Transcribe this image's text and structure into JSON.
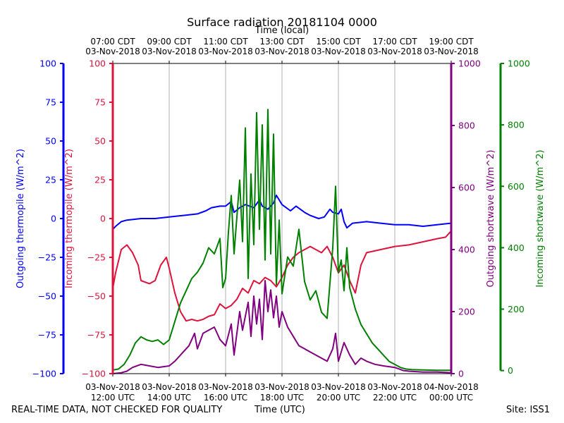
{
  "chart_data": {
    "type": "line",
    "title": "Surface radiation 20181104 0000",
    "top_axis_label": "Time (local)",
    "bottom_axis_label": "Time (UTC)",
    "x_range_hours_utc": [
      12,
      24
    ],
    "utc_ticks": [
      {
        "hour": 12,
        "date": "03-Nov-2018",
        "time": "12:00 UTC"
      },
      {
        "hour": 14,
        "date": "03-Nov-2018",
        "time": "14:00 UTC"
      },
      {
        "hour": 16,
        "date": "03-Nov-2018",
        "time": "16:00 UTC"
      },
      {
        "hour": 18,
        "date": "03-Nov-2018",
        "time": "18:00 UTC"
      },
      {
        "hour": 20,
        "date": "03-Nov-2018",
        "time": "20:00 UTC"
      },
      {
        "hour": 22,
        "date": "03-Nov-2018",
        "time": "22:00 UTC"
      },
      {
        "hour": 24,
        "date": "04-Nov-2018",
        "time": "00:00 UTC"
      }
    ],
    "local_ticks": [
      {
        "hour": 12,
        "time": "07:00 CDT",
        "date": "03-Nov-2018"
      },
      {
        "hour": 14,
        "time": "09:00 CDT",
        "date": "03-Nov-2018"
      },
      {
        "hour": 16,
        "time": "11:00 CDT",
        "date": "03-Nov-2018"
      },
      {
        "hour": 18,
        "time": "13:00 CDT",
        "date": "03-Nov-2018"
      },
      {
        "hour": 20,
        "time": "15:00 CDT",
        "date": "03-Nov-2018"
      },
      {
        "hour": 22,
        "time": "17:00 CDT",
        "date": "03-Nov-2018"
      },
      {
        "hour": 24,
        "time": "19:00 CDT",
        "date": "03-Nov-2018"
      }
    ],
    "y_axes": [
      {
        "id": "outgoing_thermopile",
        "label": "Outgoing thermopile (W/m^2)",
        "color": "#0000ff",
        "ylim": [
          -100,
          100
        ],
        "ticks": [
          -100,
          -75,
          -50,
          -25,
          0,
          25,
          50,
          75,
          100
        ]
      },
      {
        "id": "incoming_thermopile",
        "label": "Incoming thermopile (W/m^2)",
        "color": "#dc143c",
        "ylim": [
          -100,
          100
        ],
        "ticks": [
          -100,
          -75,
          -50,
          -25,
          0,
          25,
          50,
          75,
          100
        ]
      },
      {
        "id": "outgoing_shortwave",
        "label": "Outgoing shortwave (W/m^2)",
        "color": "#800080",
        "ylim": [
          0,
          1000
        ],
        "ticks": [
          0,
          200,
          400,
          600,
          800,
          1000
        ]
      },
      {
        "id": "incoming_shortwave",
        "label": "Incoming shortwave (W/m^2)",
        "color": "#008000",
        "ylim": [
          -10,
          1000
        ],
        "ticks": [
          0,
          200,
          400,
          600,
          800,
          1000
        ]
      }
    ],
    "series": [
      {
        "name": "Outgoing thermopile",
        "axis": "outgoing_thermopile",
        "color": "#0000ff",
        "x": [
          12.0,
          12.1,
          12.3,
          12.5,
          13.0,
          13.5,
          14.0,
          14.5,
          15.0,
          15.3,
          15.5,
          15.8,
          16.0,
          16.2,
          16.3,
          16.5,
          16.7,
          17.0,
          17.2,
          17.3,
          17.5,
          17.7,
          17.8,
          18.0,
          18.3,
          18.5,
          18.8,
          19.0,
          19.3,
          19.5,
          19.7,
          19.8,
          20.0,
          20.1,
          20.2,
          20.3,
          20.5,
          21.0,
          21.5,
          22.0,
          22.5,
          23.0,
          23.5,
          24.0
        ],
        "y": [
          -7,
          -5,
          -2,
          -1,
          0,
          0,
          1,
          2,
          3,
          5,
          7,
          8,
          8,
          11,
          4,
          7,
          9,
          7,
          12,
          8,
          6,
          10,
          15,
          9,
          5,
          8,
          4,
          2,
          0,
          1,
          6,
          4,
          3,
          6,
          -2,
          -6,
          -3,
          -2,
          -3,
          -4,
          -4,
          -5,
          -4,
          -3
        ]
      },
      {
        "name": "Incoming thermopile",
        "axis": "incoming_thermopile",
        "color": "#dc143c",
        "x": [
          12.0,
          12.1,
          12.3,
          12.5,
          12.7,
          12.9,
          13.0,
          13.3,
          13.5,
          13.7,
          13.9,
          14.0,
          14.2,
          14.4,
          14.6,
          14.8,
          15.0,
          15.2,
          15.4,
          15.6,
          15.8,
          16.0,
          16.2,
          16.4,
          16.6,
          16.8,
          17.0,
          17.2,
          17.4,
          17.6,
          17.8,
          18.0,
          18.2,
          18.4,
          18.6,
          18.8,
          19.0,
          19.2,
          19.4,
          19.6,
          19.8,
          20.0,
          20.2,
          20.4,
          20.6,
          20.8,
          21.0,
          21.5,
          22.0,
          22.5,
          23.0,
          23.5,
          23.8,
          24.0
        ],
        "y": [
          -45,
          -35,
          -20,
          -17,
          -22,
          -30,
          -40,
          -42,
          -40,
          -30,
          -25,
          -32,
          -48,
          -60,
          -66,
          -65,
          -66,
          -65,
          -63,
          -62,
          -55,
          -58,
          -56,
          -52,
          -45,
          -48,
          -40,
          -42,
          -38,
          -40,
          -44,
          -38,
          -30,
          -25,
          -22,
          -20,
          -18,
          -20,
          -22,
          -18,
          -25,
          -35,
          -30,
          -40,
          -48,
          -30,
          -22,
          -20,
          -18,
          -17,
          -15,
          -13,
          -12,
          -8
        ]
      },
      {
        "name": "Outgoing shortwave",
        "axis": "outgoing_shortwave",
        "color": "#800080",
        "x": [
          12.0,
          12.3,
          12.5,
          12.7,
          13.0,
          13.3,
          13.6,
          14.0,
          14.2,
          14.5,
          14.7,
          14.9,
          15.0,
          15.2,
          15.4,
          15.6,
          15.8,
          16.0,
          16.2,
          16.3,
          16.5,
          16.6,
          16.8,
          16.9,
          17.0,
          17.1,
          17.2,
          17.3,
          17.4,
          17.5,
          17.6,
          17.7,
          17.8,
          17.9,
          18.0,
          18.2,
          18.4,
          18.6,
          18.8,
          19.0,
          19.2,
          19.4,
          19.6,
          19.8,
          19.9,
          20.0,
          20.2,
          20.4,
          20.6,
          20.8,
          21.0,
          21.3,
          21.6,
          22.0,
          22.3,
          22.5,
          23.0,
          23.5,
          24.0
        ],
        "y": [
          0,
          3,
          8,
          20,
          30,
          25,
          20,
          25,
          40,
          70,
          90,
          130,
          80,
          130,
          140,
          150,
          110,
          90,
          160,
          60,
          200,
          140,
          230,
          120,
          250,
          160,
          240,
          110,
          300,
          200,
          270,
          180,
          250,
          150,
          200,
          150,
          120,
          90,
          80,
          70,
          60,
          50,
          40,
          80,
          130,
          40,
          100,
          60,
          30,
          50,
          40,
          30,
          25,
          20,
          10,
          8,
          5,
          5,
          3
        ]
      },
      {
        "name": "Incoming shortwave",
        "axis": "incoming_shortwave",
        "color": "#008000",
        "x": [
          12.0,
          12.2,
          12.4,
          12.6,
          12.8,
          13.0,
          13.2,
          13.4,
          13.6,
          13.8,
          14.0,
          14.2,
          14.4,
          14.6,
          14.8,
          15.0,
          15.2,
          15.4,
          15.6,
          15.8,
          15.9,
          16.0,
          16.1,
          16.2,
          16.3,
          16.4,
          16.5,
          16.6,
          16.7,
          16.8,
          16.9,
          17.0,
          17.1,
          17.2,
          17.3,
          17.4,
          17.5,
          17.6,
          17.7,
          17.8,
          17.9,
          18.0,
          18.2,
          18.4,
          18.6,
          18.8,
          19.0,
          19.2,
          19.4,
          19.6,
          19.8,
          19.9,
          20.0,
          20.1,
          20.2,
          20.3,
          20.4,
          20.6,
          20.8,
          21.0,
          21.2,
          21.4,
          21.6,
          21.8,
          22.0,
          22.2,
          22.4,
          22.6,
          23.0,
          23.5,
          24.0
        ],
        "y": [
          2,
          5,
          20,
          50,
          90,
          110,
          100,
          95,
          100,
          85,
          100,
          160,
          220,
          260,
          300,
          320,
          350,
          400,
          380,
          430,
          270,
          300,
          450,
          570,
          380,
          500,
          620,
          420,
          790,
          300,
          640,
          410,
          840,
          460,
          800,
          360,
          850,
          380,
          770,
          280,
          490,
          250,
          370,
          340,
          460,
          290,
          230,
          260,
          190,
          170,
          400,
          600,
          320,
          360,
          260,
          400,
          270,
          200,
          150,
          120,
          90,
          70,
          50,
          30,
          20,
          10,
          5,
          3,
          2,
          1,
          1
        ]
      }
    ]
  },
  "footer": {
    "disclaimer": "REAL-TIME DATA, NOT CHECKED FOR QUALITY",
    "xlabel": "Time (UTC)",
    "site": "Site: ISS1"
  }
}
